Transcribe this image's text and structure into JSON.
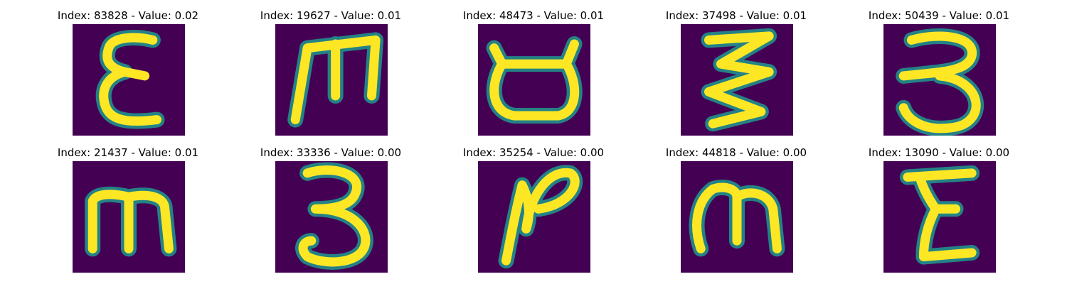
{
  "colors": {
    "background": "#440154",
    "stroke": "#FDE725",
    "edge": "#21918C"
  },
  "panels": [
    {
      "caption": "Index: 83828 - Value: 0.02",
      "glyph": "epsilon-glyph"
    },
    {
      "caption": "Index: 19627 - Value: 0.01",
      "glyph": "m-glyph"
    },
    {
      "caption": "Index: 48473 - Value: 0.01",
      "glyph": "cup-glyph"
    },
    {
      "caption": "Index: 37498 - Value: 0.01",
      "glyph": "zigzag-glyph"
    },
    {
      "caption": "Index: 50439 - Value: 0.01",
      "glyph": "three-glyph"
    },
    {
      "caption": "Index: 21437 - Value: 0.01",
      "glyph": "m-glyph"
    },
    {
      "caption": "Index: 33336 - Value: 0.00",
      "glyph": "three-glyph"
    },
    {
      "caption": "Index: 35254 - Value: 0.00",
      "glyph": "n-glyph"
    },
    {
      "caption": "Index: 44818 - Value: 0.00",
      "glyph": "m-glyph"
    },
    {
      "caption": "Index: 13090 - Value: 0.00",
      "glyph": "epsilon-glyph"
    }
  ]
}
